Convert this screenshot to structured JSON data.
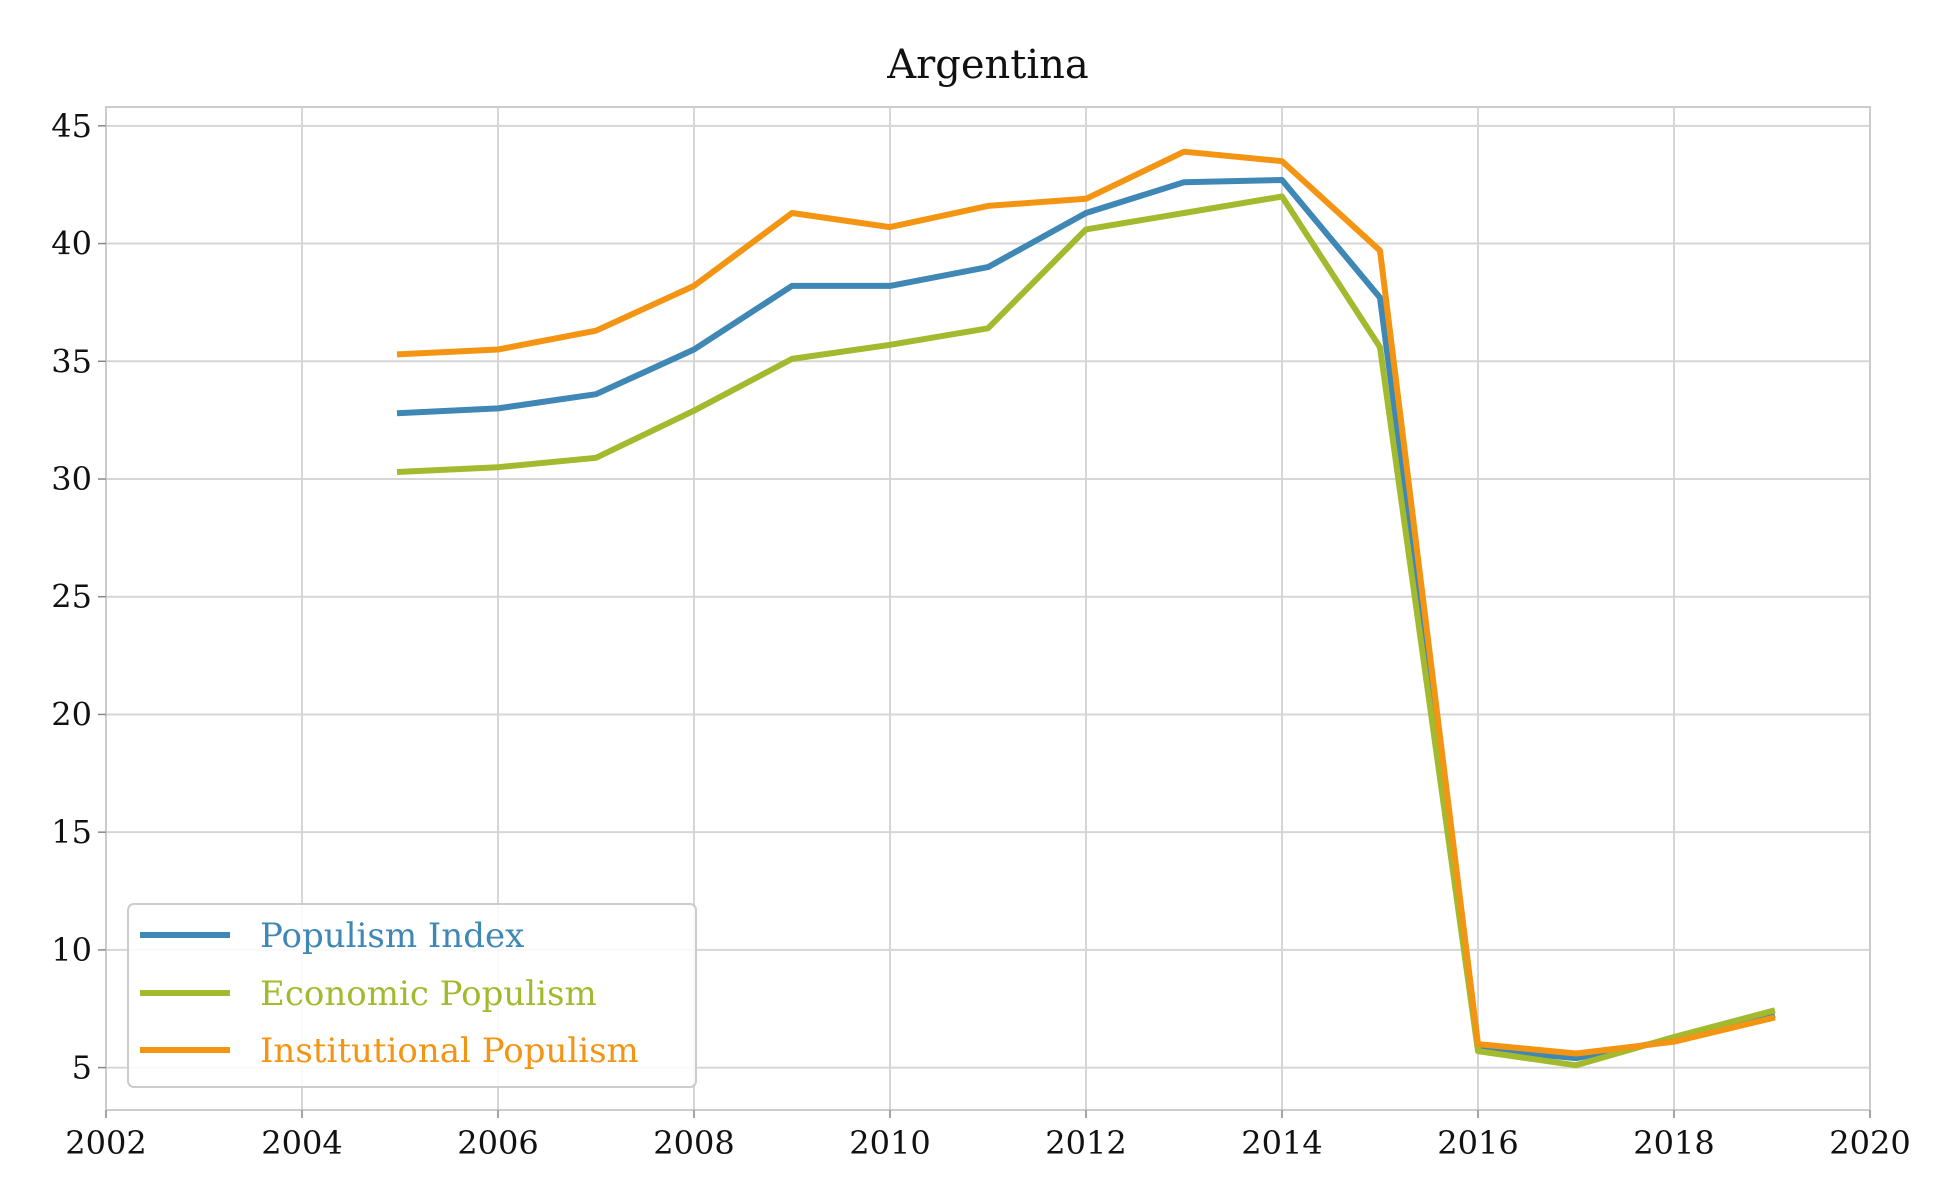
{
  "chart_data": {
    "type": "line",
    "title": "Argentina",
    "xlabel": "",
    "ylabel": "",
    "xlim": [
      2002,
      2020
    ],
    "ylim": [
      3.2,
      45.8
    ],
    "xticks": [
      2002,
      2004,
      2006,
      2008,
      2010,
      2012,
      2014,
      2016,
      2018,
      2020
    ],
    "yticks": [
      5,
      10,
      15,
      20,
      25,
      30,
      35,
      40,
      45
    ],
    "grid": true,
    "legend_position": "lower-left",
    "x": [
      2005,
      2006,
      2007,
      2008,
      2009,
      2010,
      2011,
      2012,
      2013,
      2014,
      2015,
      2016,
      2017,
      2018,
      2019
    ],
    "series": [
      {
        "name": "Populism Index",
        "color": "#3f88b5",
        "values": [
          32.8,
          33.0,
          33.6,
          35.5,
          38.2,
          38.2,
          39.0,
          41.3,
          42.6,
          42.7,
          37.7,
          5.8,
          5.4,
          6.2,
          7.2
        ]
      },
      {
        "name": "Economic Populism",
        "color": "#a3b92e",
        "values": [
          30.3,
          30.5,
          30.9,
          32.9,
          35.1,
          35.7,
          36.4,
          40.6,
          41.3,
          42.0,
          35.6,
          5.7,
          5.1,
          6.3,
          7.4
        ]
      },
      {
        "name": "Institutional Populism",
        "color": "#f39512",
        "values": [
          35.3,
          35.5,
          36.3,
          38.2,
          41.3,
          40.7,
          41.6,
          41.9,
          43.9,
          43.5,
          39.7,
          6.0,
          5.6,
          6.1,
          7.1
        ]
      }
    ]
  }
}
